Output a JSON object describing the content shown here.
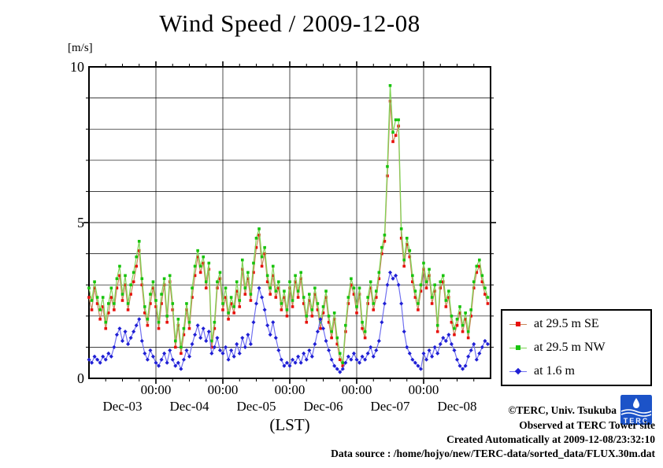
{
  "title": "Wind Speed / 2009-12-08",
  "y_axis": {
    "unit": "[m/s]",
    "ticks": [
      {
        "label": "0",
        "value": 0
      },
      {
        "label": "5",
        "value": 5
      },
      {
        "label": "10",
        "value": 10
      }
    ]
  },
  "x_axis": {
    "time_ticks": [
      "00:00",
      "00:00",
      "00:00",
      "00:00",
      "00:00"
    ],
    "day_labels": [
      "Dec-03",
      "Dec-04",
      "Dec-05",
      "Dec-06",
      "Dec-07",
      "Dec-08"
    ],
    "axis_label": "(LST)"
  },
  "legend": [
    {
      "label": "at 29.5 m SE",
      "marker": "square",
      "marker_color": "#e8100c",
      "line_color": "#c8885a"
    },
    {
      "label": "at 29.5 m NW",
      "marker": "square",
      "marker_color": "#17c40e",
      "line_color": "#7fd455"
    },
    {
      "label": "at 1.6 m",
      "marker": "diamond",
      "marker_color": "#1f1fd4",
      "line_color": "#7070f0"
    }
  ],
  "footer": {
    "credit": "©TERC, Univ. Tsukuba",
    "observed": "Observed at TERC Tower site",
    "created": "Created Automatically at 2009-12-08/23:32:10",
    "datasource": "Data source : /home/hojyo/new/TERC-data/sorted_data/FLUX.30m.dat",
    "logo_text": "TERC"
  },
  "colors": {
    "grid": "#000000",
    "frame": "#000000",
    "logo_blue": "#1c53c8"
  },
  "chart_data": {
    "type": "line",
    "title": "Wind Speed / 2009-12-08",
    "xlabel": "(LST)",
    "ylabel": "[m/s]",
    "ylim": [
      0,
      10
    ],
    "y_gridline_step": 1,
    "x_range": [
      "Dec-03 00:00",
      "Dec-09 00:00"
    ],
    "x_unit": "hours since Dec-03 00:00",
    "x_start": 0,
    "x_step_hours": 1,
    "x_total_hours": 144,
    "grid": true,
    "legend_position": "outside-right-bottom",
    "series": [
      {
        "name": "at 29.5 m SE",
        "marker": "square",
        "marker_color": "#e8100c",
        "line_color": "#c8885a",
        "values": [
          2.6,
          2.2,
          2.9,
          2.4,
          1.9,
          2.3,
          1.6,
          2.1,
          2.6,
          2.2,
          2.9,
          3.3,
          2.5,
          3.0,
          2.2,
          2.7,
          3.1,
          3.6,
          4.1,
          3.0,
          2.1,
          1.7,
          2.4,
          2.9,
          2.3,
          1.6,
          2.4,
          3.0,
          1.8,
          3.1,
          2.2,
          1.0,
          1.7,
          0.8,
          1.4,
          2.2,
          1.6,
          2.6,
          3.3,
          3.9,
          3.4,
          3.7,
          2.9,
          3.5,
          1.0,
          1.6,
          2.9,
          3.2,
          2.2,
          2.6,
          1.9,
          2.4,
          2.1,
          2.8,
          2.3,
          3.5,
          2.7,
          3.2,
          2.5,
          3.4,
          4.2,
          4.6,
          3.6,
          4.0,
          3.1,
          2.7,
          3.3,
          2.6,
          2.9,
          2.2,
          2.6,
          2.0,
          2.9,
          2.3,
          3.1,
          2.6,
          3.2,
          2.4,
          1.8,
          2.5,
          2.0,
          2.7,
          2.2,
          1.6,
          2.1,
          2.6,
          1.8,
          1.3,
          1.9,
          1.1,
          0.6,
          0.4,
          1.5,
          2.4,
          3.0,
          2.7,
          2.1,
          2.7,
          1.6,
          1.3,
          2.4,
          2.9,
          2.2,
          2.6,
          3.2,
          4.0,
          4.4,
          6.5,
          8.9,
          7.6,
          7.8,
          8.1,
          4.5,
          3.6,
          4.3,
          3.9,
          3.1,
          2.6,
          2.2,
          2.8,
          3.5,
          2.9,
          3.3,
          2.4,
          2.8,
          1.5,
          2.9,
          3.1,
          2.3,
          2.6,
          1.8,
          1.4,
          1.7,
          2.1,
          1.5,
          1.9,
          1.3,
          2.0,
          2.9,
          3.4,
          3.6,
          3.1,
          2.7,
          2.4
        ]
      },
      {
        "name": "at 29.5 m NW",
        "marker": "square",
        "marker_color": "#17c40e",
        "line_color": "#7fd455",
        "values": [
          2.9,
          2.5,
          3.1,
          2.6,
          2.2,
          2.6,
          1.8,
          2.4,
          2.9,
          2.4,
          3.2,
          3.6,
          2.7,
          3.3,
          2.4,
          3.0,
          3.4,
          3.9,
          4.4,
          3.2,
          2.3,
          1.9,
          2.7,
          3.1,
          2.5,
          1.8,
          2.7,
          3.2,
          2.0,
          3.3,
          2.4,
          1.2,
          1.9,
          1.0,
          1.6,
          2.4,
          1.8,
          2.9,
          3.6,
          4.1,
          3.6,
          3.9,
          3.1,
          3.7,
          1.2,
          1.8,
          3.1,
          3.4,
          2.4,
          2.9,
          2.1,
          2.6,
          2.3,
          3.1,
          2.5,
          3.8,
          2.9,
          3.4,
          2.7,
          3.7,
          4.5,
          4.8,
          3.9,
          4.2,
          3.3,
          2.9,
          3.6,
          2.8,
          3.1,
          2.4,
          2.8,
          2.2,
          3.1,
          2.5,
          3.3,
          2.8,
          3.4,
          2.6,
          2.0,
          2.7,
          2.2,
          2.9,
          2.4,
          1.8,
          2.3,
          2.8,
          2.0,
          1.5,
          2.1,
          1.3,
          0.8,
          0.5,
          1.7,
          2.6,
          3.2,
          2.9,
          2.3,
          2.9,
          1.8,
          1.5,
          2.6,
          3.1,
          2.4,
          2.8,
          3.4,
          4.2,
          4.6,
          6.8,
          9.4,
          7.9,
          8.3,
          8.3,
          4.8,
          3.8,
          4.5,
          4.1,
          3.3,
          2.8,
          2.4,
          3.0,
          3.7,
          3.1,
          3.5,
          2.6,
          3.0,
          1.7,
          3.1,
          3.3,
          2.5,
          2.8,
          2.0,
          1.6,
          1.9,
          2.3,
          1.7,
          2.1,
          1.5,
          2.2,
          3.1,
          3.6,
          3.8,
          3.3,
          2.9,
          2.6
        ]
      },
      {
        "name": "at 1.6 m",
        "marker": "diamond",
        "marker_color": "#1f1fd4",
        "line_color": "#7070f0",
        "values": [
          0.6,
          0.5,
          0.7,
          0.6,
          0.5,
          0.7,
          0.6,
          0.8,
          0.7,
          1.0,
          1.4,
          1.6,
          1.2,
          1.5,
          1.1,
          1.3,
          1.5,
          1.7,
          1.9,
          1.2,
          0.8,
          0.6,
          0.9,
          0.7,
          0.5,
          0.4,
          0.6,
          0.8,
          0.5,
          0.9,
          0.6,
          0.4,
          0.5,
          0.3,
          0.6,
          0.9,
          0.7,
          1.1,
          1.4,
          1.7,
          1.3,
          1.6,
          1.2,
          1.5,
          0.8,
          1.0,
          1.3,
          0.9,
          0.8,
          1.0,
          0.6,
          0.9,
          0.7,
          1.1,
          0.8,
          1.3,
          1.0,
          1.4,
          1.1,
          1.8,
          2.4,
          2.9,
          2.6,
          2.2,
          1.7,
          1.4,
          1.8,
          1.3,
          0.9,
          0.6,
          0.4,
          0.5,
          0.4,
          0.6,
          0.5,
          0.7,
          0.5,
          0.8,
          0.6,
          0.9,
          0.7,
          1.1,
          1.5,
          1.9,
          1.6,
          1.2,
          0.9,
          0.6,
          0.4,
          0.3,
          0.2,
          0.3,
          0.5,
          0.7,
          0.6,
          0.8,
          0.6,
          0.5,
          0.7,
          0.6,
          0.8,
          1.0,
          0.7,
          0.9,
          1.2,
          1.8,
          2.4,
          3.0,
          3.4,
          3.2,
          3.3,
          3.0,
          2.4,
          1.5,
          1.0,
          0.8,
          0.6,
          0.5,
          0.4,
          0.3,
          0.8,
          0.6,
          0.9,
          0.7,
          1.0,
          0.8,
          1.1,
          1.3,
          1.2,
          1.4,
          1.1,
          0.9,
          0.6,
          0.4,
          0.3,
          0.4,
          0.7,
          0.9,
          1.1,
          0.6,
          0.8,
          1.0,
          1.2,
          1.1
        ]
      }
    ]
  }
}
